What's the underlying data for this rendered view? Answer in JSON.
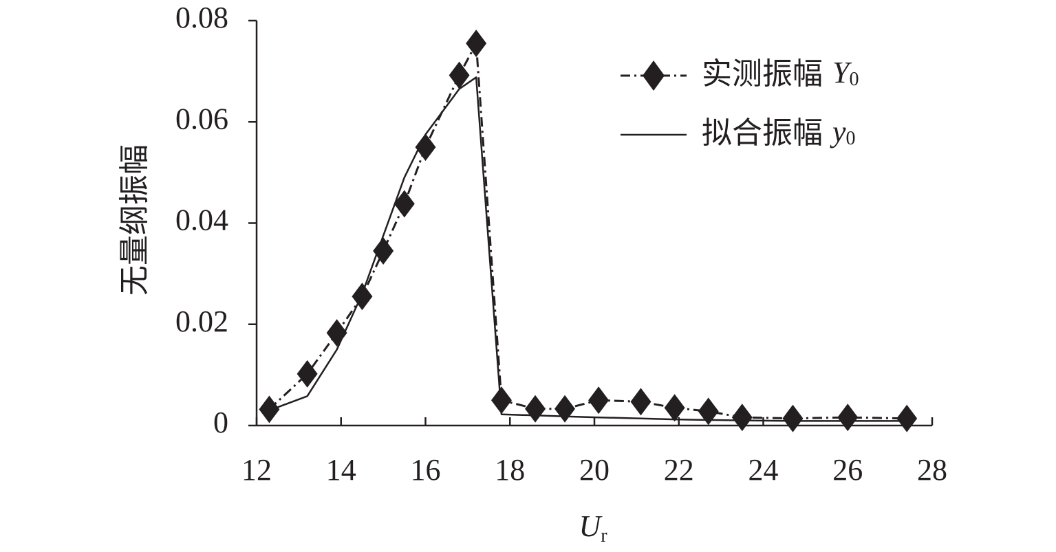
{
  "chart_data": {
    "type": "line",
    "xlabel": "U",
    "xlabel_sub": "r",
    "ylabel": "无量纲振幅",
    "xlim": [
      12,
      28
    ],
    "ylim": [
      0,
      0.08
    ],
    "x_ticks": [
      "12",
      "14",
      "16",
      "18",
      "20",
      "22",
      "24",
      "26",
      "28"
    ],
    "y_ticks": [
      "0",
      "0.02",
      "0.04",
      "0.06",
      "0.08"
    ],
    "grid": false,
    "legend_position": "top-right",
    "series": [
      {
        "name": "实测振幅 ",
        "symbol": "Y",
        "symbol_sub": "0",
        "style": "dash-dot-markers",
        "marker": "diamond",
        "x": [
          12.3,
          13.2,
          13.9,
          14.5,
          15.0,
          15.5,
          16.0,
          16.8,
          17.2,
          17.8,
          18.6,
          19.3,
          20.1,
          21.1,
          21.9,
          22.7,
          23.5,
          24.7,
          26.0,
          27.4
        ],
        "y": [
          0.0032,
          0.0102,
          0.0183,
          0.0255,
          0.0345,
          0.0438,
          0.055,
          0.0692,
          0.0755,
          0.005,
          0.0033,
          0.0033,
          0.005,
          0.0047,
          0.0035,
          0.0028,
          0.0016,
          0.0014,
          0.0016,
          0.0014
        ]
      },
      {
        "name": "拟合振幅 ",
        "symbol": "y",
        "symbol_sub": "0",
        "style": "solid",
        "marker": "none",
        "x": [
          12.3,
          13.2,
          13.9,
          14.5,
          15.0,
          15.5,
          16.0,
          16.8,
          17.2,
          17.8,
          18.6,
          19.3,
          20.1,
          21.1,
          21.9,
          22.7,
          23.5,
          24.7,
          26.0,
          27.4
        ],
        "y": [
          0.003,
          0.0058,
          0.015,
          0.026,
          0.0375,
          0.049,
          0.0575,
          0.0665,
          0.0688,
          0.0022,
          0.002,
          0.0018,
          0.0016,
          0.0014,
          0.0012,
          0.0011,
          0.001,
          0.0009,
          0.0009,
          0.0009
        ]
      }
    ]
  }
}
